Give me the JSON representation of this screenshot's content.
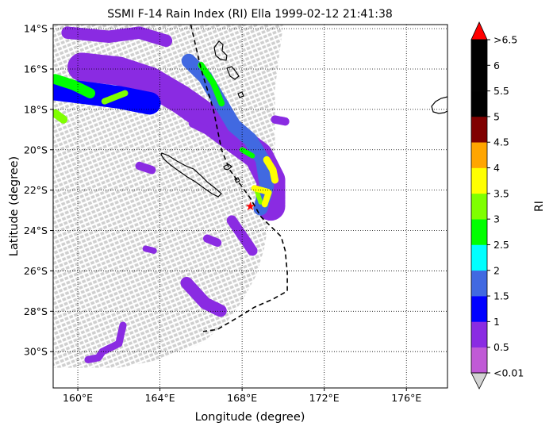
{
  "chart_data": {
    "type": "map",
    "title": "SSMI F-14 Rain Index (RI) Ella 1999-02-12 21:41:38",
    "xlabel": "Longitude (degree)",
    "ylabel": "Latitude (degree)",
    "xlim": [
      158.8,
      178.0
    ],
    "ylim": [
      -31.8,
      -13.8
    ],
    "xticks": [
      {
        "value": 160,
        "label": "160°E"
      },
      {
        "value": 164,
        "label": "164°E"
      },
      {
        "value": 168,
        "label": "168°E"
      },
      {
        "value": 172,
        "label": "172°E"
      },
      {
        "value": 176,
        "label": "176°E"
      }
    ],
    "yticks": [
      {
        "value": -14,
        "label": "14°S"
      },
      {
        "value": -16,
        "label": "16°S"
      },
      {
        "value": -18,
        "label": "18°S"
      },
      {
        "value": -20,
        "label": "20°S"
      },
      {
        "value": -22,
        "label": "22°S"
      },
      {
        "value": -24,
        "label": "24°S"
      },
      {
        "value": -26,
        "label": "26°S"
      },
      {
        "value": -28,
        "label": "28°S"
      },
      {
        "value": -30,
        "label": "30°S"
      }
    ],
    "grid": true,
    "colorbar": {
      "label": "RI",
      "ticks": [
        "<0.01",
        "0.5",
        "1",
        "1.5",
        "2",
        "2.5",
        "3",
        "3.5",
        "4",
        "4.5",
        "5",
        "5.5",
        "6",
        ">6.5"
      ],
      "colors": [
        "#c05ad6",
        "#8a2be2",
        "#0000ff",
        "#4169e1",
        "#00ffff",
        "#00ff00",
        "#7fff00",
        "#ffff00",
        "#ffa500",
        "#800000",
        "#000000",
        "#000000",
        "#000000"
      ],
      "under_color": "#d3d3d3",
      "over_color": "#ff0000"
    },
    "storm_center": {
      "lon": 168.4,
      "lat": -22.8
    },
    "storm_track": [
      [
        165.5,
        -13.8
      ],
      [
        166.0,
        -16.0
      ],
      [
        166.6,
        -18.0
      ],
      [
        167.0,
        -20.0
      ],
      [
        167.4,
        -21.0
      ],
      [
        168.4,
        -22.4
      ],
      [
        168.9,
        -23.3
      ],
      [
        169.9,
        -24.3
      ],
      [
        170.1,
        -25.0
      ],
      [
        170.2,
        -26.1
      ],
      [
        170.2,
        -27.0
      ],
      [
        169.5,
        -27.4
      ],
      [
        168.6,
        -27.8
      ],
      [
        167.8,
        -28.3
      ],
      [
        166.8,
        -28.9
      ],
      [
        166.1,
        -29.0
      ]
    ],
    "rain_bands": [
      {
        "ri": 0.5,
        "points": [
          [
            160.2,
            -15.9
          ],
          [
            162.0,
            -16.1
          ],
          [
            163.5,
            -16.6
          ],
          [
            165.0,
            -17.5
          ],
          [
            166.4,
            -18.5
          ],
          [
            167.6,
            -19.4
          ],
          [
            168.8,
            -20.3
          ],
          [
            169.4,
            -21.5
          ],
          [
            169.4,
            -22.8
          ]
        ],
        "width": 1.4
      },
      {
        "ri": 1.0,
        "points": [
          [
            158.9,
            -17.0
          ],
          [
            160.5,
            -17.2
          ],
          [
            162.0,
            -17.4
          ],
          [
            163.5,
            -17.7
          ]
        ],
        "width": 1.1
      },
      {
        "ri": 1.5,
        "points": [
          [
            165.4,
            -15.6
          ],
          [
            166.2,
            -16.4
          ],
          [
            166.9,
            -17.6
          ],
          [
            167.6,
            -18.8
          ],
          [
            168.4,
            -19.5
          ],
          [
            169.0,
            -20.5
          ],
          [
            169.2,
            -21.8
          ],
          [
            168.9,
            -22.9
          ]
        ],
        "width": 0.7
      },
      {
        "ri": 2.5,
        "points": [
          [
            158.9,
            -16.5
          ],
          [
            159.8,
            -16.8
          ],
          [
            160.6,
            -17.2
          ]
        ],
        "width": 0.5
      },
      {
        "ri": 2.5,
        "points": [
          [
            166.0,
            -15.8
          ],
          [
            166.6,
            -16.7
          ],
          [
            167.0,
            -17.7
          ]
        ],
        "width": 0.3
      },
      {
        "ri": 2.5,
        "points": [
          [
            168.0,
            -20.0
          ],
          [
            168.5,
            -20.3
          ]
        ],
        "width": 0.25
      },
      {
        "ri": 3.0,
        "points": [
          [
            158.9,
            -18.2
          ],
          [
            159.3,
            -18.5
          ]
        ],
        "width": 0.4
      },
      {
        "ri": 3.0,
        "points": [
          [
            161.3,
            -17.6
          ],
          [
            162.3,
            -17.2
          ]
        ],
        "width": 0.3
      },
      {
        "ri": 3.0,
        "points": [
          [
            168.7,
            -22.0
          ],
          [
            168.9,
            -22.6
          ]
        ],
        "width": 0.22
      },
      {
        "ri": 3.5,
        "points": [
          [
            169.2,
            -20.5
          ],
          [
            169.5,
            -21.0
          ],
          [
            169.6,
            -21.5
          ]
        ],
        "width": 0.35
      },
      {
        "ri": 3.5,
        "points": [
          [
            168.6,
            -21.9
          ],
          [
            169.3,
            -22.1
          ],
          [
            169.1,
            -22.7
          ]
        ],
        "width": 0.3
      },
      {
        "ri": 0.5,
        "points": [
          [
            159.5,
            -14.2
          ],
          [
            161.5,
            -14.4
          ],
          [
            163.0,
            -14.2
          ],
          [
            164.3,
            -14.6
          ]
        ],
        "width": 0.6
      },
      {
        "ri": 0.5,
        "points": [
          [
            165.3,
            -26.6
          ],
          [
            166.2,
            -27.6
          ],
          [
            167.0,
            -28.0
          ]
        ],
        "width": 0.6
      },
      {
        "ri": 0.5,
        "points": [
          [
            167.5,
            -23.5
          ],
          [
            168.5,
            -25.0
          ]
        ],
        "width": 0.5
      },
      {
        "ri": 0.5,
        "points": [
          [
            162.2,
            -28.7
          ],
          [
            162.0,
            -29.6
          ],
          [
            161.2,
            -30.0
          ],
          [
            161.0,
            -30.3
          ],
          [
            160.5,
            -30.4
          ]
        ],
        "width": 0.35
      },
      {
        "ri": 0.5,
        "points": [
          [
            163.0,
            -20.8
          ],
          [
            163.6,
            -21.0
          ]
        ],
        "width": 0.4
      },
      {
        "ri": 0.5,
        "points": [
          [
            165.6,
            -18.7
          ],
          [
            166.2,
            -19.0
          ]
        ],
        "width": 0.4
      },
      {
        "ri": 0.5,
        "points": [
          [
            169.6,
            -18.5
          ],
          [
            170.1,
            -18.6
          ]
        ],
        "width": 0.4
      },
      {
        "ri": 0.5,
        "points": [
          [
            166.3,
            -24.4
          ],
          [
            166.8,
            -24.6
          ]
        ],
        "width": 0.4
      },
      {
        "ri": 0.5,
        "points": [
          [
            163.3,
            -24.9
          ],
          [
            163.7,
            -25.0
          ]
        ],
        "width": 0.3
      }
    ],
    "swath": {
      "east_edge": [
        [
          170.0,
          -13.8
        ],
        [
          169.6,
          -17.0
        ],
        [
          169.6,
          -19.8
        ],
        [
          169.4,
          -22.7
        ],
        [
          169.1,
          -24.8
        ],
        [
          168.7,
          -26.2
        ],
        [
          168.0,
          -27.5
        ],
        [
          167.2,
          -28.6
        ],
        [
          166.0,
          -29.6
        ],
        [
          164.0,
          -30.4
        ],
        [
          162.0,
          -30.8
        ],
        [
          160.0,
          -30.8
        ],
        [
          158.8,
          -30.8
        ]
      ]
    }
  }
}
